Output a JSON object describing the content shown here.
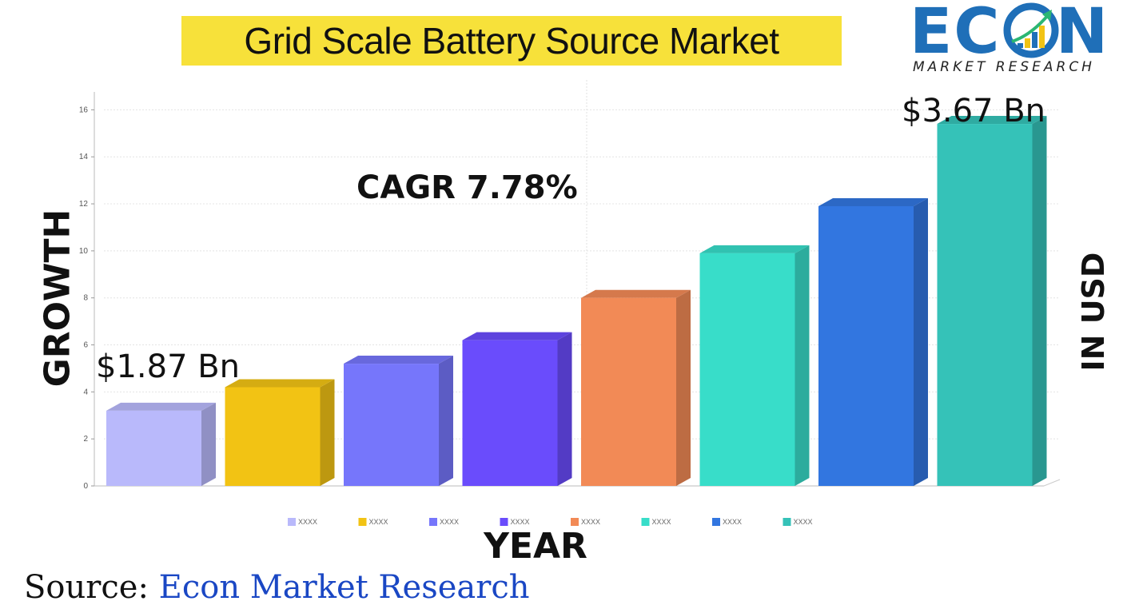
{
  "header": {
    "title": "Grid Scale Battery Source Market"
  },
  "logo": {
    "word": "ECON",
    "subtitle": "MARKET RESEARCH"
  },
  "annotations": {
    "cagr": "CAGR 7.78%",
    "start_value": "$1.87 Bn",
    "end_value": "$3.67 Bn"
  },
  "axis_labels": {
    "y_left": "GROWTH",
    "y_right": "IN USD",
    "x": "YEAR"
  },
  "source": {
    "prefix": "Source:",
    "name": "Econ Market Research"
  },
  "colors": {
    "title_bg": "#f7e13a",
    "logo_blue": "#1f6fb8",
    "source_blue": "#1a47c4"
  },
  "chart_data": {
    "type": "bar",
    "categories": [
      "XXXX",
      "XXXX",
      "XXXX",
      "XXXX",
      "XXXX",
      "XXXX",
      "XXXX",
      "XXXX"
    ],
    "values": [
      3.2,
      4.2,
      5.2,
      6.2,
      8.0,
      9.9,
      11.9,
      15.4
    ],
    "colors": [
      "#b9b9fb",
      "#f2c314",
      "#7676fb",
      "#6a4cfc",
      "#f28a56",
      "#38ddc9",
      "#3276e0",
      "#35c2b8"
    ],
    "ylim": [
      0,
      17
    ],
    "yticks": [
      0,
      2,
      4,
      6,
      8,
      10,
      12,
      14,
      16
    ],
    "grid": true,
    "legend": "bottom",
    "xlabel": "YEAR",
    "ylabel": "GROWTH"
  }
}
